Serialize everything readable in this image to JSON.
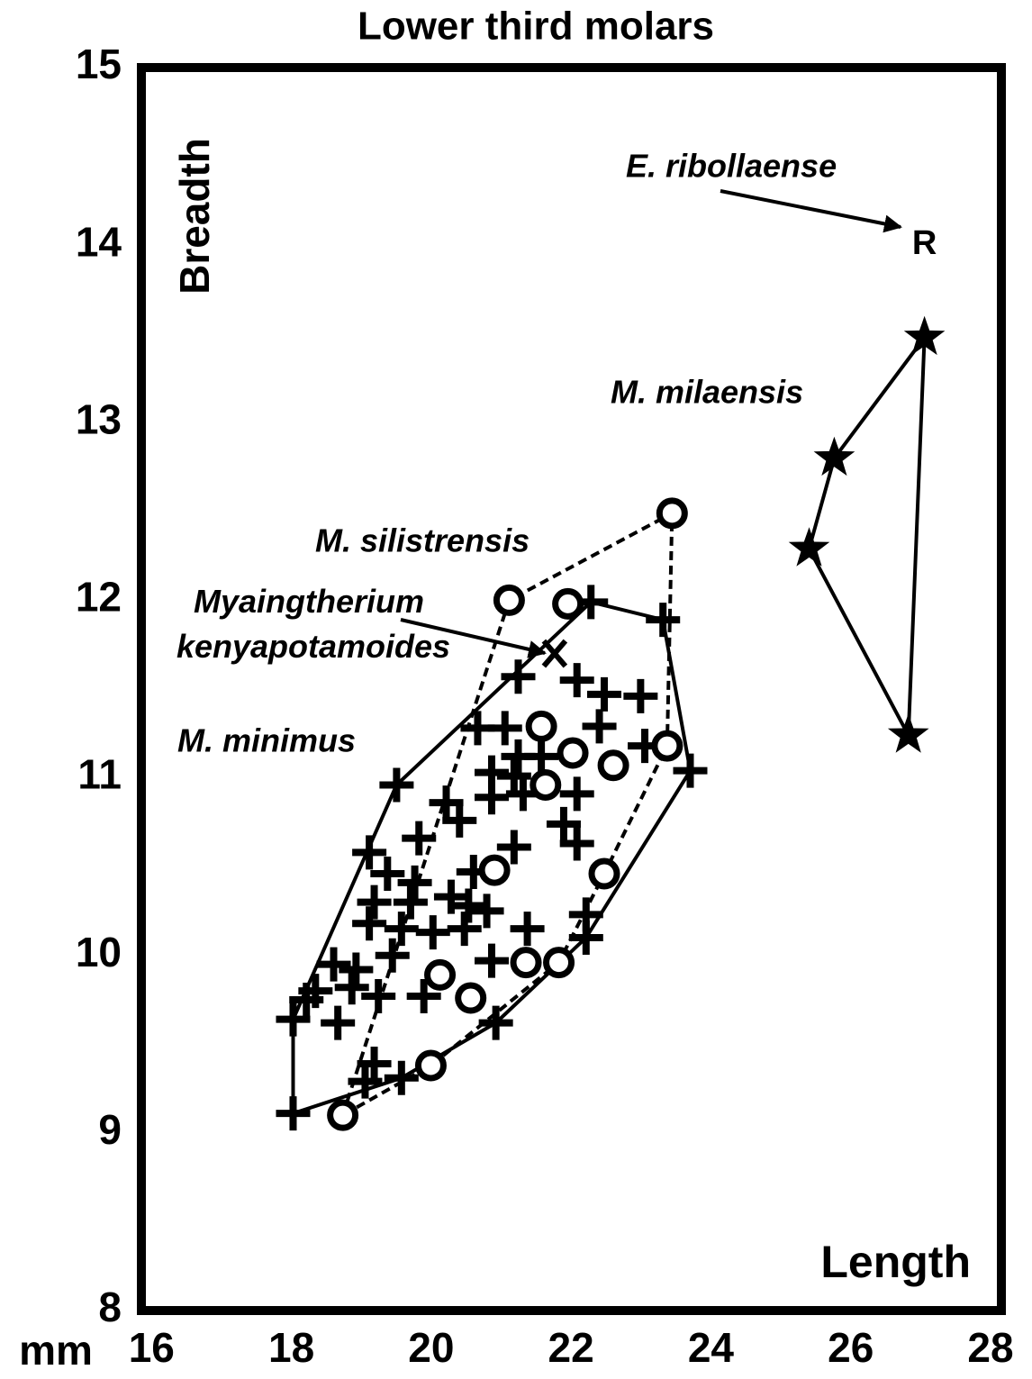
{
  "chart_data": {
    "type": "scatter",
    "title": "Lower third molars",
    "x_label": "Length",
    "y_label": "Breadth",
    "x_unit": "mm",
    "xlim": [
      15.7,
      28
    ],
    "ylim": [
      8,
      15
    ],
    "xticks": [
      16,
      18,
      20,
      22,
      24,
      26,
      28
    ],
    "yticks": [
      8,
      9,
      10,
      11,
      12,
      13,
      14,
      15
    ],
    "grid": false,
    "series": [
      {
        "name": "M. minimus",
        "color": "#000000",
        "marker": "plus",
        "hull": "solid",
        "x": [
          22.13,
          23.16,
          21.09,
          21.93,
          22.32,
          22.84,
          22.25,
          20.51,
          20.9,
          21.42,
          21.09,
          22.9,
          23.55,
          20.71,
          21.03,
          19.35,
          21.16,
          21.93,
          20.06,
          20.71,
          20.25,
          21.74,
          21.93,
          19.67,
          21.03,
          18.96,
          19.22,
          19.61,
          20.45,
          19.03,
          19.55,
          20.13,
          20.38,
          20.64,
          22.06,
          18.96,
          19.42,
          19.87,
          20.32,
          21.22,
          22.06,
          18.45,
          18.77,
          19.29,
          20.71,
          18.19,
          18.71,
          19.09,
          19.74,
          18.06,
          17.87,
          18.51,
          20.77,
          19.03,
          19.42,
          18.9,
          17.87
        ],
        "y": [
          11.99,
          11.89,
          11.57,
          11.55,
          11.47,
          11.46,
          11.29,
          11.28,
          11.28,
          11.12,
          11.12,
          11.18,
          11.04,
          11.03,
          11.01,
          10.96,
          10.91,
          10.91,
          10.86,
          10.89,
          10.76,
          10.74,
          10.63,
          10.66,
          10.61,
          10.58,
          10.46,
          10.41,
          10.47,
          10.3,
          10.3,
          10.33,
          10.28,
          10.25,
          10.23,
          10.18,
          10.15,
          10.13,
          10.15,
          10.15,
          10.1,
          9.95,
          9.92,
          10.0,
          9.97,
          9.8,
          9.82,
          9.77,
          9.77,
          9.75,
          9.64,
          9.62,
          9.62,
          9.39,
          9.31,
          9.29,
          9.11
        ]
      },
      {
        "name": "M. silistrensis",
        "color": "#000000",
        "marker": "circle",
        "hull": "dashed",
        "x": [
          20.96,
          23.29,
          21.8,
          21.42,
          21.48,
          21.87,
          22.45,
          23.22,
          20.75,
          22.32,
          21.67,
          21.2,
          19.97,
          20.41,
          19.84,
          18.58
        ],
        "y": [
          12.0,
          12.49,
          11.98,
          11.29,
          10.96,
          11.14,
          11.07,
          11.18,
          10.48,
          10.46,
          9.96,
          9.96,
          9.89,
          9.76,
          9.38,
          9.1
        ]
      },
      {
        "name": "M. milaensis",
        "color": "#000000",
        "marker": "star",
        "hull": "solid",
        "x": [
          26.9,
          25.61,
          25.25,
          26.67
        ],
        "y": [
          13.48,
          12.8,
          12.29,
          11.24
        ]
      },
      {
        "name": "Myaingtherium kenyapotamoides",
        "color": "#000000",
        "marker": "x",
        "x": [
          21.61
        ],
        "y": [
          11.7
        ]
      },
      {
        "name": "E. ribollaense",
        "color": "#000000",
        "marker": "text",
        "marker_label": "R",
        "x": [
          26.9
        ],
        "y": [
          14.0
        ]
      }
    ]
  }
}
